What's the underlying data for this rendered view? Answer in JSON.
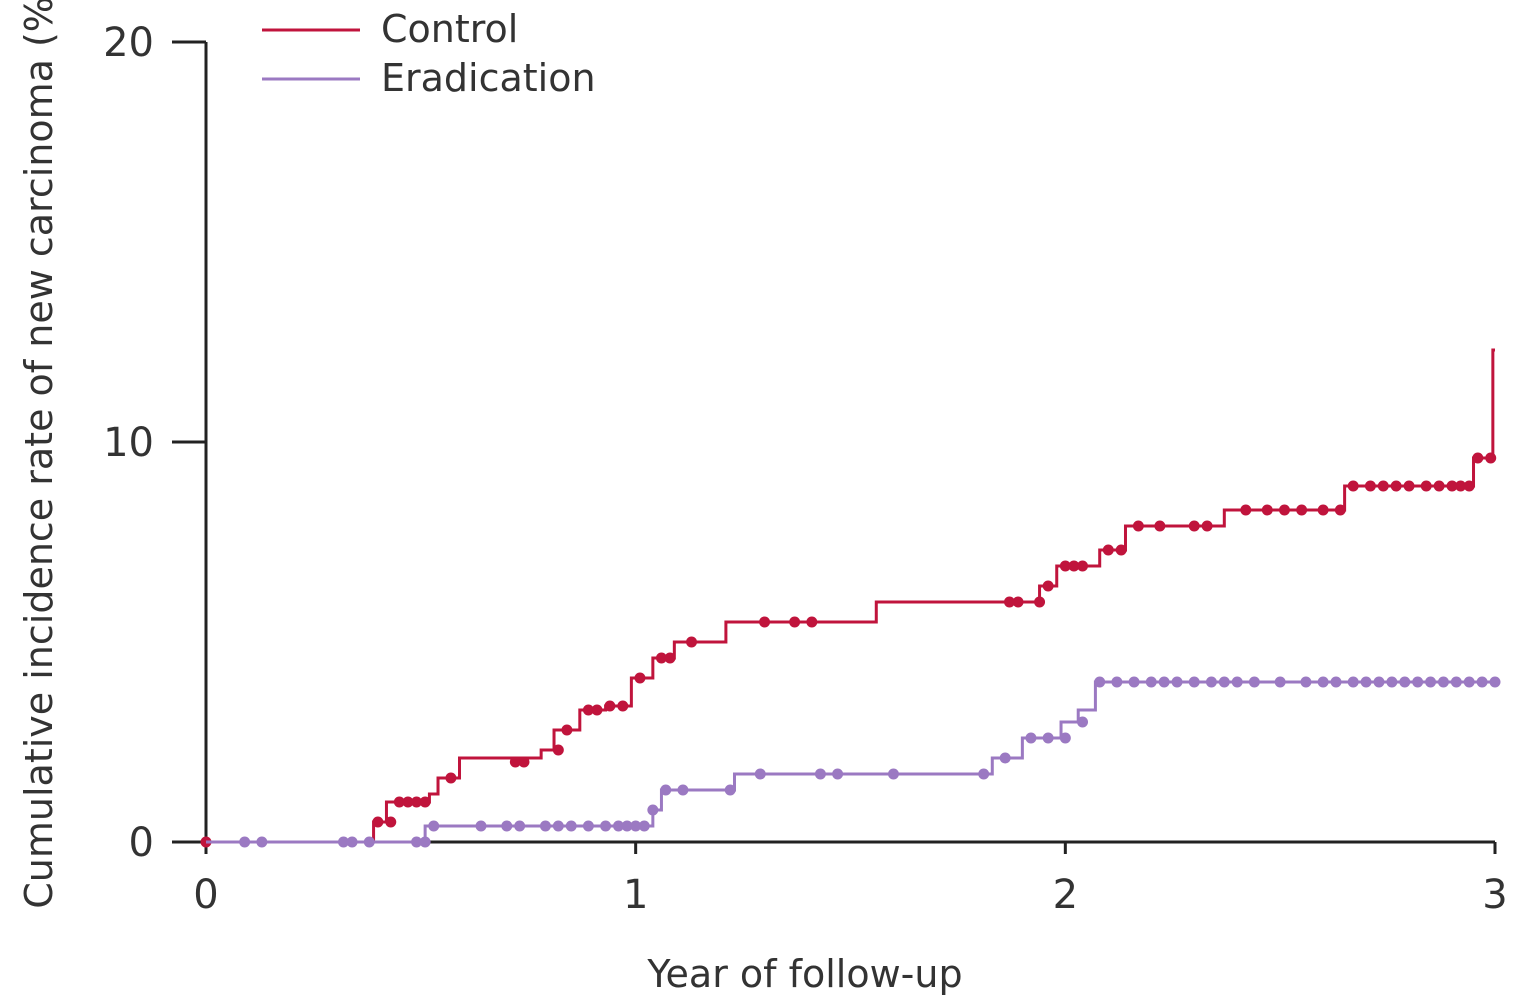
{
  "chart_data": {
    "type": "line",
    "title": "",
    "xlabel": "Year of follow-up",
    "ylabel": "Cumulative incidence rate of new carcinoma (%)",
    "xlim": [
      0,
      3
    ],
    "ylim": [
      0,
      20
    ],
    "xticks": [
      0,
      1,
      2,
      3
    ],
    "yticks": [
      0,
      10,
      20
    ],
    "grid": false,
    "legend_position": "top-left",
    "series": [
      {
        "name": "Control",
        "color": "#c0143c",
        "step": true,
        "steps": [
          [
            0,
            0
          ],
          [
            0.39,
            0.5
          ],
          [
            0.42,
            1.0
          ],
          [
            0.52,
            1.2
          ],
          [
            0.54,
            1.6
          ],
          [
            0.59,
            2.1
          ],
          [
            0.78,
            2.3
          ],
          [
            0.81,
            2.8
          ],
          [
            0.87,
            3.3
          ],
          [
            0.93,
            3.4
          ],
          [
            0.99,
            4.1
          ],
          [
            1.04,
            4.6
          ],
          [
            1.09,
            5.0
          ],
          [
            1.21,
            5.5
          ],
          [
            1.56,
            6.0
          ],
          [
            1.94,
            6.4
          ],
          [
            1.98,
            6.9
          ],
          [
            2.08,
            7.3
          ],
          [
            2.14,
            7.9
          ],
          [
            2.37,
            8.3
          ],
          [
            2.65,
            8.9
          ],
          [
            2.95,
            9.6
          ],
          [
            2.995,
            12.3
          ]
        ],
        "censor": [
          [
            0,
            0
          ],
          [
            0.4,
            0.5
          ],
          [
            0.43,
            0.5
          ],
          [
            0.45,
            1.0
          ],
          [
            0.47,
            1.0
          ],
          [
            0.49,
            1.0
          ],
          [
            0.51,
            1.0
          ],
          [
            0.57,
            1.6
          ],
          [
            0.72,
            2.0
          ],
          [
            0.74,
            2.0
          ],
          [
            0.82,
            2.3
          ],
          [
            0.84,
            2.8
          ],
          [
            0.89,
            3.3
          ],
          [
            0.91,
            3.3
          ],
          [
            0.94,
            3.4
          ],
          [
            0.97,
            3.4
          ],
          [
            1.01,
            4.1
          ],
          [
            1.06,
            4.6
          ],
          [
            1.08,
            4.6
          ],
          [
            1.13,
            5.0
          ],
          [
            1.3,
            5.5
          ],
          [
            1.37,
            5.5
          ],
          [
            1.41,
            5.5
          ],
          [
            1.87,
            6.0
          ],
          [
            1.89,
            6.0
          ],
          [
            1.94,
            6.0
          ],
          [
            1.96,
            6.4
          ],
          [
            2.0,
            6.9
          ],
          [
            2.02,
            6.9
          ],
          [
            2.04,
            6.9
          ],
          [
            2.1,
            7.3
          ],
          [
            2.13,
            7.3
          ],
          [
            2.17,
            7.9
          ],
          [
            2.22,
            7.9
          ],
          [
            2.3,
            7.9
          ],
          [
            2.33,
            7.9
          ],
          [
            2.42,
            8.3
          ],
          [
            2.47,
            8.3
          ],
          [
            2.51,
            8.3
          ],
          [
            2.55,
            8.3
          ],
          [
            2.6,
            8.3
          ],
          [
            2.64,
            8.3
          ],
          [
            2.67,
            8.9
          ],
          [
            2.71,
            8.9
          ],
          [
            2.74,
            8.9
          ],
          [
            2.77,
            8.9
          ],
          [
            2.8,
            8.9
          ],
          [
            2.84,
            8.9
          ],
          [
            2.87,
            8.9
          ],
          [
            2.9,
            8.9
          ],
          [
            2.92,
            8.9
          ],
          [
            2.94,
            8.9
          ],
          [
            2.96,
            9.6
          ],
          [
            2.99,
            9.6
          ]
        ]
      },
      {
        "name": "Eradication",
        "color": "#9b79c2",
        "step": true,
        "steps": [
          [
            0,
            0
          ],
          [
            0.51,
            0.4
          ],
          [
            1.04,
            0.8
          ],
          [
            1.06,
            1.3
          ],
          [
            1.23,
            1.7
          ],
          [
            1.83,
            2.1
          ],
          [
            1.9,
            2.6
          ],
          [
            1.99,
            3.0
          ],
          [
            2.03,
            3.3
          ],
          [
            2.07,
            4.0
          ]
        ],
        "censor": [
          [
            0.09,
            0
          ],
          [
            0.13,
            0
          ],
          [
            0.32,
            0
          ],
          [
            0.34,
            0
          ],
          [
            0.38,
            0
          ],
          [
            0.49,
            0
          ],
          [
            0.51,
            0
          ],
          [
            0.53,
            0.4
          ],
          [
            0.64,
            0.4
          ],
          [
            0.7,
            0.4
          ],
          [
            0.73,
            0.4
          ],
          [
            0.79,
            0.4
          ],
          [
            0.82,
            0.4
          ],
          [
            0.85,
            0.4
          ],
          [
            0.89,
            0.4
          ],
          [
            0.93,
            0.4
          ],
          [
            0.96,
            0.4
          ],
          [
            0.98,
            0.4
          ],
          [
            1.0,
            0.4
          ],
          [
            1.02,
            0.4
          ],
          [
            1.04,
            0.8
          ],
          [
            1.07,
            1.3
          ],
          [
            1.11,
            1.3
          ],
          [
            1.22,
            1.3
          ],
          [
            1.29,
            1.7
          ],
          [
            1.43,
            1.7
          ],
          [
            1.47,
            1.7
          ],
          [
            1.6,
            1.7
          ],
          [
            1.81,
            1.7
          ],
          [
            1.86,
            2.1
          ],
          [
            1.92,
            2.6
          ],
          [
            1.96,
            2.6
          ],
          [
            2.0,
            2.6
          ],
          [
            2.04,
            3.0
          ],
          [
            2.08,
            4.0
          ],
          [
            2.12,
            4.0
          ],
          [
            2.16,
            4.0
          ],
          [
            2.2,
            4.0
          ],
          [
            2.23,
            4.0
          ],
          [
            2.26,
            4.0
          ],
          [
            2.3,
            4.0
          ],
          [
            2.34,
            4.0
          ],
          [
            2.37,
            4.0
          ],
          [
            2.4,
            4.0
          ],
          [
            2.44,
            4.0
          ],
          [
            2.5,
            4.0
          ],
          [
            2.56,
            4.0
          ],
          [
            2.6,
            4.0
          ],
          [
            2.63,
            4.0
          ],
          [
            2.67,
            4.0
          ],
          [
            2.7,
            4.0
          ],
          [
            2.73,
            4.0
          ],
          [
            2.76,
            4.0
          ],
          [
            2.79,
            4.0
          ],
          [
            2.82,
            4.0
          ],
          [
            2.85,
            4.0
          ],
          [
            2.88,
            4.0
          ],
          [
            2.91,
            4.0
          ],
          [
            2.94,
            4.0
          ],
          [
            2.97,
            4.0
          ],
          [
            3.0,
            4.0
          ]
        ]
      }
    ]
  }
}
